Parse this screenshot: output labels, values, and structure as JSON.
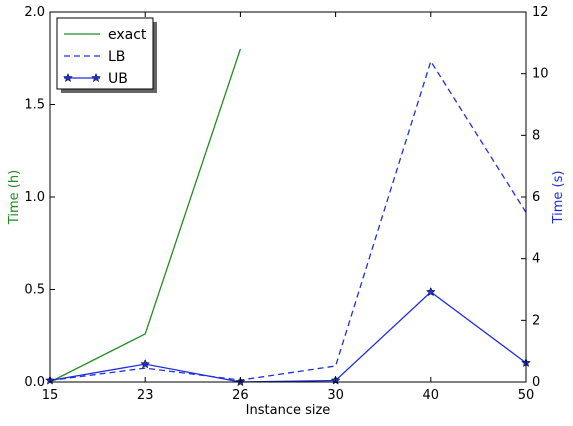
{
  "chart_data": {
    "type": "line",
    "xlabel": "Instance size",
    "y1label": "Time (h)",
    "y2label": "Time (s)",
    "x_ticks": [
      "15",
      "23",
      "26",
      "30",
      "40",
      "50"
    ],
    "y1_ticks": [
      "0.0",
      "0.5",
      "1.0",
      "1.5",
      "2.0"
    ],
    "y2_ticks": [
      "0",
      "2",
      "4",
      "6",
      "8",
      "10",
      "12"
    ],
    "y1lim": [
      0,
      2
    ],
    "y2lim": [
      0,
      12
    ],
    "x_scale": "categorical (evenly spaced ticks)",
    "grid": false,
    "legend_position": "top-left",
    "series": [
      {
        "name": "exact",
        "axis": "left",
        "color": "#228b22",
        "style": "solid",
        "marker": "none",
        "x": [
          "15",
          "23",
          "26"
        ],
        "values": [
          0.0,
          0.26,
          1.8
        ]
      },
      {
        "name": "LB",
        "axis": "right",
        "color": "#1f2fe0",
        "style": "dashed",
        "marker": "none",
        "x": [
          "15",
          "23",
          "26",
          "30",
          "40",
          "50"
        ],
        "values": [
          0.05,
          0.45,
          0.06,
          0.52,
          10.4,
          5.5
        ]
      },
      {
        "name": "UB",
        "axis": "right",
        "color": "#1f2fe0",
        "style": "solid",
        "marker": "star",
        "x": [
          "15",
          "23",
          "26",
          "30",
          "40",
          "50"
        ],
        "values": [
          0.05,
          0.58,
          0.0,
          0.05,
          2.92,
          0.62
        ]
      }
    ]
  }
}
